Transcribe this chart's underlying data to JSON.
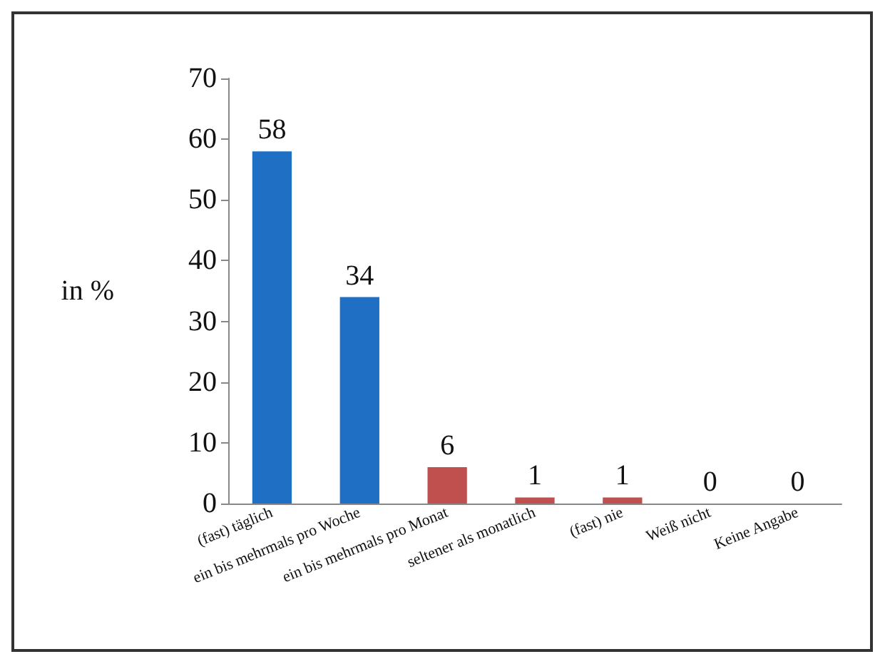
{
  "chart_data": {
    "type": "bar",
    "ylabel": "in %",
    "categories": [
      "(fast) täglich",
      "ein bis mehrmals pro Woche",
      "ein bis mehrmals pro Monat",
      "seltener als monatlich",
      "(fast) nie",
      "Weiß nicht",
      "Keine Angabe"
    ],
    "values": [
      58,
      34,
      6,
      1,
      1,
      0,
      0
    ],
    "colors": [
      "#1f6fc5",
      "#1f6fc5",
      "#c0504d",
      "#c0504d",
      "#c0504d",
      "#c0504d",
      "#c0504d"
    ],
    "ylim": [
      0,
      70
    ],
    "yticks": [
      0,
      10,
      20,
      30,
      40,
      50,
      60,
      70
    ],
    "grid": false,
    "data_labels": true
  }
}
